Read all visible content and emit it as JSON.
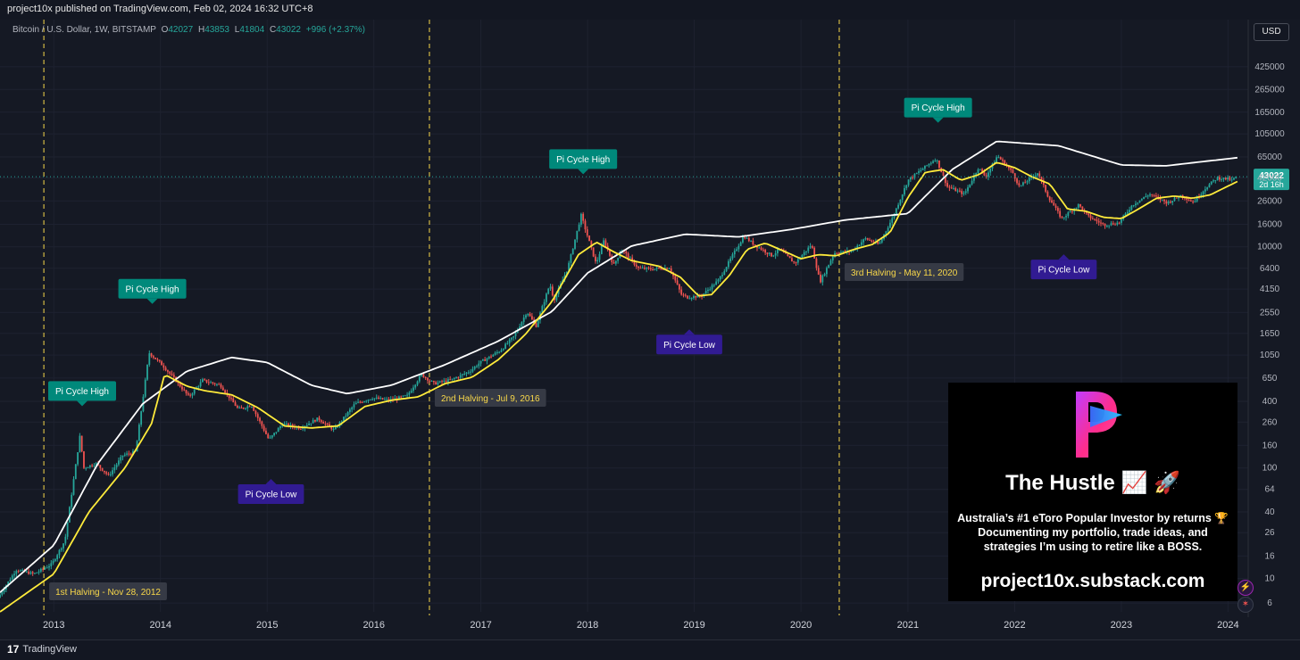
{
  "header": {
    "published": "project10x published on TradingView.com, Feb 02, 2024 16:32 UTC+8",
    "symbol": "Bitcoin / U.S. Dollar, 1W, BITSTAMP",
    "ohlc": [
      {
        "label": "O",
        "value": "42027"
      },
      {
        "label": "H",
        "value": "43853"
      },
      {
        "label": "L",
        "value": "41804"
      },
      {
        "label": "C",
        "value": "43022"
      }
    ],
    "change": "+996 (+2.37%)",
    "currency": "USD"
  },
  "footer": {
    "brand": "TradingView",
    "logo_mark": "17"
  },
  "colors": {
    "background": "#151924",
    "up": "#26a69a",
    "down": "#ef5350",
    "ma_fast": "#ffeb3b",
    "ma_slow": "#ffffff",
    "high_label": "#00897b",
    "low_label": "#311b92",
    "halving_line": "#f9d84a"
  },
  "promo": {
    "title": "The Hustle 📈 🚀",
    "description_lines": [
      "Australia’s #1 eToro Popular Investor by returns 🏆",
      "Documenting my portfolio, trade ideas, and",
      "strategies I’m using to retire like a BOSS."
    ],
    "url": "project10x.substack.com"
  },
  "chart_data": {
    "type": "line",
    "y_scale": "log",
    "ylim": [
      5,
      700000
    ],
    "xlim": [
      "2012-07-01",
      "2024-03-10"
    ],
    "y_ticks": [
      "425000",
      "265000",
      "165000",
      "105000",
      "65000",
      "42000",
      "26000",
      "16000",
      "10000",
      "6400",
      "4150",
      "2550",
      "1650",
      "1050",
      "650",
      "400",
      "260",
      "160",
      "100",
      "64",
      "40",
      "26",
      "16",
      "10",
      "6"
    ],
    "x_ticks": [
      "2013",
      "2014",
      "2015",
      "2016",
      "2017",
      "2018",
      "2019",
      "2020",
      "2021",
      "2022",
      "2023",
      "2024"
    ],
    "last_price": {
      "value": "43022",
      "countdown": "2d 16h"
    },
    "price_series": {
      "name": "BTCUSD",
      "x": [
        "2012-07-01",
        "2012-09-01",
        "2012-11-01",
        "2013-01-01",
        "2013-02-15",
        "2013-04-08",
        "2013-04-20",
        "2013-06-01",
        "2013-07-15",
        "2013-09-01",
        "2013-10-15",
        "2013-11-30",
        "2014-01-15",
        "2014-03-01",
        "2014-04-15",
        "2014-06-01",
        "2014-08-01",
        "2014-10-01",
        "2014-11-15",
        "2015-01-14",
        "2015-03-01",
        "2015-05-01",
        "2015-07-01",
        "2015-08-25",
        "2015-11-04",
        "2016-01-01",
        "2016-03-01",
        "2016-05-01",
        "2016-06-18",
        "2016-08-01",
        "2016-10-01",
        "2016-12-01",
        "2017-01-05",
        "2017-03-15",
        "2017-05-01",
        "2017-06-15",
        "2017-07-15",
        "2017-09-01",
        "2017-09-15",
        "2017-11-01",
        "2017-12-17",
        "2018-02-06",
        "2018-03-05",
        "2018-04-07",
        "2018-05-05",
        "2018-07-01",
        "2018-08-15",
        "2018-10-15",
        "2018-11-25",
        "2018-12-15",
        "2019-02-01",
        "2019-04-01",
        "2019-05-15",
        "2019-06-26",
        "2019-08-01",
        "2019-10-01",
        "2019-10-26",
        "2019-12-18",
        "2020-02-13",
        "2020-03-13",
        "2020-05-01",
        "2020-07-01",
        "2020-08-15",
        "2020-10-01",
        "2020-11-15",
        "2021-01-08",
        "2021-02-15",
        "2021-04-14",
        "2021-05-23",
        "2021-07-20",
        "2021-09-06",
        "2021-10-01",
        "2021-11-10",
        "2022-01-01",
        "2022-01-24",
        "2022-03-28",
        "2022-05-01",
        "2022-06-18",
        "2022-08-15",
        "2022-09-15",
        "2022-11-09",
        "2022-12-31",
        "2023-02-15",
        "2023-04-14",
        "2023-06-15",
        "2023-08-01",
        "2023-09-11",
        "2023-10-25",
        "2023-12-01",
        "2024-01-11",
        "2024-01-23",
        "2024-02-02"
      ],
      "y": [
        6.7,
        12,
        11,
        13.5,
        22,
        200,
        100,
        110,
        85,
        130,
        140,
        1100,
        850,
        620,
        440,
        620,
        560,
        340,
        370,
        180,
        250,
        230,
        280,
        220,
        380,
        430,
        410,
        450,
        700,
        580,
        630,
        750,
        900,
        1150,
        1550,
        2600,
        1900,
        4600,
        3300,
        6400,
        19300,
        7000,
        11500,
        6800,
        9500,
        6400,
        6300,
        6500,
        3700,
        3500,
        3600,
        5000,
        8000,
        12500,
        10500,
        8300,
        9500,
        7100,
        10500,
        4800,
        8800,
        9200,
        11900,
        10500,
        18000,
        40000,
        48000,
        63000,
        35000,
        30000,
        52000,
        43000,
        66500,
        47000,
        35000,
        47000,
        29000,
        18000,
        24000,
        19000,
        15800,
        16500,
        24000,
        30000,
        25000,
        29300,
        25300,
        34500,
        42000,
        41000,
        39500,
        43022
      ]
    },
    "ma_fast": {
      "name": "111DMA",
      "x": [
        "2012-07-01",
        "2013-01-01",
        "2013-05-01",
        "2013-09-01",
        "2013-12-01",
        "2014-01-15",
        "2014-04-01",
        "2014-06-01",
        "2014-09-01",
        "2014-12-01",
        "2015-03-01",
        "2015-06-01",
        "2015-09-01",
        "2015-12-01",
        "2016-03-01",
        "2016-06-01",
        "2016-09-01",
        "2016-12-01",
        "2017-03-01",
        "2017-06-01",
        "2017-09-01",
        "2017-12-01",
        "2018-02-01",
        "2018-04-01",
        "2018-06-01",
        "2018-09-01",
        "2018-11-15",
        "2019-01-15",
        "2019-03-01",
        "2019-05-01",
        "2019-07-01",
        "2019-09-01",
        "2019-11-01",
        "2020-01-01",
        "2020-03-01",
        "2020-05-01",
        "2020-07-01",
        "2020-09-01",
        "2020-11-01",
        "2021-01-01",
        "2021-03-01",
        "2021-05-01",
        "2021-07-01",
        "2021-09-01",
        "2021-11-01",
        "2022-01-01",
        "2022-03-01",
        "2022-05-01",
        "2022-07-01",
        "2022-09-01",
        "2022-11-01",
        "2023-01-01",
        "2023-03-01",
        "2023-05-01",
        "2023-07-01",
        "2023-09-01",
        "2023-11-01",
        "2024-02-02"
      ],
      "y": [
        5,
        11,
        40,
        100,
        250,
        700,
        550,
        500,
        460,
        350,
        240,
        230,
        240,
        360,
        410,
        440,
        580,
        660,
        950,
        1600,
        3200,
        8500,
        11000,
        9000,
        7500,
        6700,
        5300,
        3600,
        3700,
        5500,
        9500,
        10800,
        9200,
        7800,
        8500,
        8300,
        9500,
        10500,
        13500,
        28000,
        47000,
        50000,
        40000,
        45000,
        58000,
        52000,
        43000,
        37000,
        22000,
        21000,
        18500,
        18000,
        22000,
        27500,
        28800,
        27500,
        29500,
        39000
      ]
    },
    "ma_slow": {
      "name": "350DMA x2",
      "x": [
        "2012-07-01",
        "2013-01-01",
        "2013-06-01",
        "2013-11-01",
        "2014-04-01",
        "2014-09-01",
        "2015-01-01",
        "2015-06-01",
        "2015-10-01",
        "2016-03-01",
        "2016-09-01",
        "2017-03-01",
        "2017-09-01",
        "2018-01-01",
        "2018-06-01",
        "2018-12-01",
        "2019-06-01",
        "2019-12-01",
        "2020-06-01",
        "2021-01-01",
        "2021-06-01",
        "2021-11-01",
        "2022-06-01",
        "2023-01-01",
        "2023-06-01",
        "2024-02-02"
      ],
      "y": [
        7.5,
        20,
        110,
        380,
        750,
        1000,
        900,
        560,
        470,
        560,
        860,
        1400,
        2600,
        5800,
        10200,
        13000,
        12300,
        14400,
        17500,
        20000,
        50000,
        90000,
        82000,
        55000,
        54000,
        64000
      ]
    },
    "annotations": [
      {
        "text": "Pi Cycle High",
        "kind": "high",
        "date": "2013-04-08"
      },
      {
        "text": "Pi Cycle High",
        "kind": "high",
        "date": "2013-12-04"
      },
      {
        "text": "Pi Cycle High",
        "kind": "high",
        "date": "2017-12-17"
      },
      {
        "text": "Pi Cycle High",
        "kind": "high",
        "date": "2021-04-14"
      },
      {
        "text": "Pi Cycle Low",
        "kind": "low",
        "date": "2015-01-14"
      },
      {
        "text": "Pi Cycle Low",
        "kind": "low",
        "date": "2018-12-15"
      },
      {
        "text": "Pi Cycle Low",
        "kind": "low",
        "date": "2022-06-18"
      }
    ],
    "halvings": [
      {
        "date": "2012-11-28",
        "text": "1st Halving - Nov 28, 2012"
      },
      {
        "date": "2016-07-09",
        "text": "2nd Halving - Jul 9, 2016"
      },
      {
        "date": "2020-05-11",
        "text": "3rd Halving - May 11, 2020"
      }
    ]
  }
}
